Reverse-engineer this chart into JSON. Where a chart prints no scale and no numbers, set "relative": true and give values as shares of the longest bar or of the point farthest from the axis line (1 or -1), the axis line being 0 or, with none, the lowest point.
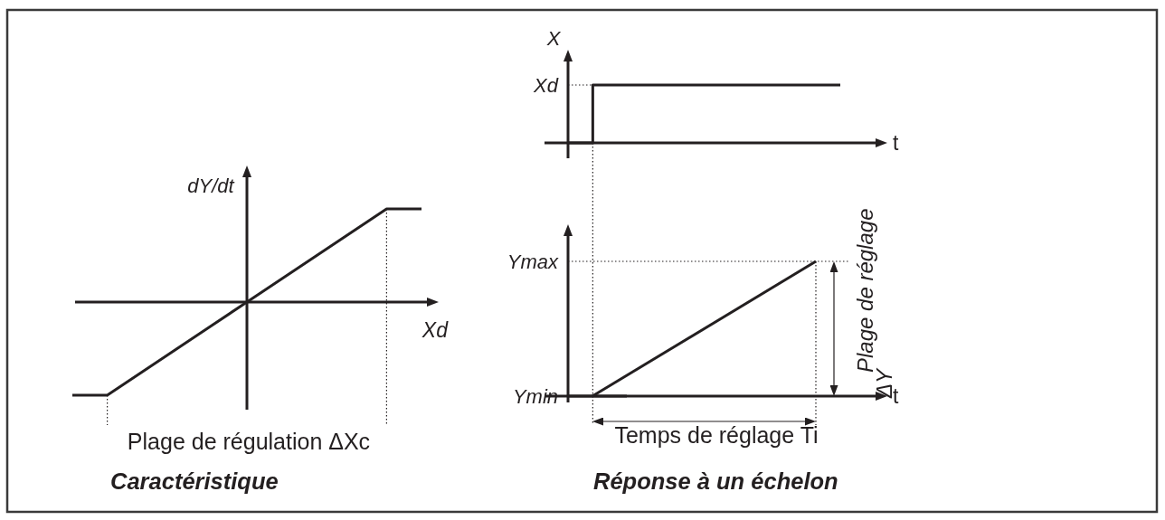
{
  "chart_data": [
    {
      "type": "line",
      "title": "Caractéristique",
      "xlabel": "Xd",
      "ylabel": "dY/dt",
      "relative": true,
      "color": "#231f20",
      "categories": [
        null,
        null,
        null,
        null,
        null,
        null,
        null,
        null,
        null,
        null,
        null
      ],
      "values": [
        -1,
        -1,
        -0.75,
        -0.5,
        -0.25,
        0,
        0.25,
        0.5,
        0.75,
        1,
        1
      ],
      "annotations": [
        "Plage de régulation ΔXc"
      ]
    },
    {
      "type": "step",
      "xlabel": "t",
      "ylabel": "X",
      "relative": true,
      "color": "#231f20",
      "categories": [
        null,
        null,
        null,
        null,
        null,
        null,
        null,
        null,
        null,
        null,
        null,
        null
      ],
      "values": [
        0,
        1,
        1,
        1,
        1,
        1,
        1,
        1,
        1,
        1,
        1,
        1
      ],
      "ref_lines": [
        {
          "axis": "y",
          "value": 1,
          "label": "Xd",
          "line_style": "dotted"
        }
      ]
    },
    {
      "type": "line",
      "title": "Réponse à un échelon",
      "xlabel": "t",
      "relative": true,
      "color": "#231f20",
      "categories": [
        null,
        null
      ],
      "values": [
        0,
        1
      ],
      "ref_lines": [
        {
          "axis": "y",
          "value": 1,
          "label": "Ymax",
          "line_style": "dotted"
        },
        {
          "axis": "y",
          "value": 0,
          "label": "Ymin"
        }
      ],
      "annotations": [
        "Temps de réglage Ti",
        "Plage de réglage ΔY"
      ]
    }
  ]
}
